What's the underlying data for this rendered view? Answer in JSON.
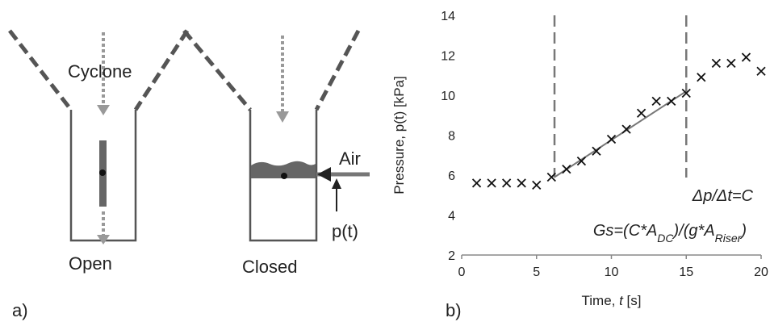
{
  "panel_a": {
    "label": "a)",
    "cyclone_label": "Cyclone",
    "open_label": "Open",
    "closed_label": "Closed",
    "air_label": "Air",
    "pressure_label": "p(t)"
  },
  "panel_b": {
    "label": "b)",
    "annotation_rate": "Δp/Δt=C",
    "annotation_gs": "Gs=(C*A_DC)/(g*A_Riser)"
  },
  "chart_data": {
    "type": "scatter",
    "xlabel": "Time, t [s]",
    "ylabel": "Pressure, p(t) [kPa]",
    "xlim": [
      0,
      20
    ],
    "ylim": [
      2,
      14
    ],
    "xticks": [
      0,
      5,
      10,
      15,
      20
    ],
    "yticks": [
      2,
      4,
      6,
      8,
      10,
      12,
      14
    ],
    "grid": false,
    "marker": "x",
    "series": [
      {
        "x": [
          1,
          2,
          3,
          4,
          5,
          6,
          7,
          8,
          9,
          10,
          11,
          12,
          13,
          14,
          15,
          16,
          17,
          18,
          19,
          20
        ],
        "y": [
          5.6,
          5.6,
          5.6,
          5.6,
          5.5,
          5.9,
          6.3,
          6.7,
          7.2,
          7.8,
          8.3,
          9.1,
          9.7,
          9.7,
          10.1,
          10.9,
          11.6,
          11.6,
          11.9,
          11.2
        ]
      }
    ],
    "fit_line": {
      "x": [
        6.2,
        15
      ],
      "y": [
        5.9,
        10.2
      ]
    },
    "vertical_dashed_lines": [
      6.2,
      15
    ]
  }
}
